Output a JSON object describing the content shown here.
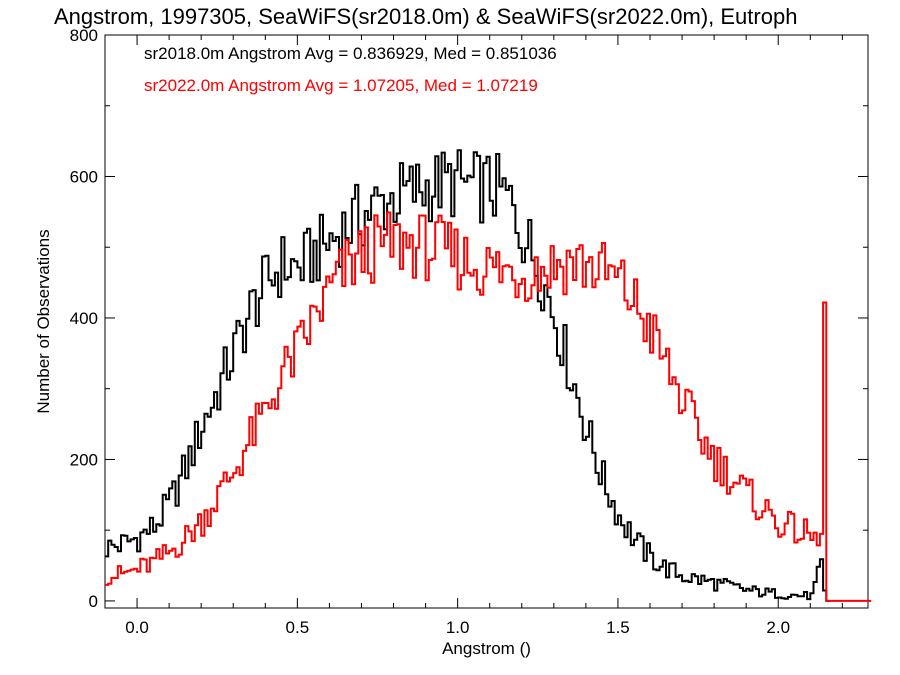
{
  "chart_data": {
    "type": "line",
    "title": "Angstrom, 1997305, SeaWiFS(sr2018.0m) & SeaWiFS(sr2022.0m), Eutroph",
    "xlabel": "Angstrom ()",
    "ylabel": "Number of Observations",
    "xlim": [
      -0.1,
      2.28
    ],
    "ylim": [
      -10,
      800
    ],
    "xticks": [
      0.0,
      0.5,
      1.0,
      1.5,
      2.0
    ],
    "xtick_labels": [
      "0.0",
      "0.5",
      "1.0",
      "1.5",
      "2.0"
    ],
    "yticks": [
      0,
      200,
      400,
      600,
      800
    ],
    "ytick_labels": [
      "0",
      "200",
      "400",
      "600",
      "800"
    ],
    "annotations": [
      {
        "text": "sr2018.0m Angstrom Avg = 0.836929, Med = 0.851036",
        "color": "#000000"
      },
      {
        "text": "sr2022.0m Angstrom Avg = 1.07205, Med = 1.07219",
        "color": "#ff0000"
      }
    ],
    "series": [
      {
        "color": "#000000",
        "x": [
          -0.1,
          -0.05,
          0.0,
          0.05,
          0.1,
          0.15,
          0.2,
          0.25,
          0.3,
          0.35,
          0.4,
          0.45,
          0.5,
          0.55,
          0.6,
          0.65,
          0.7,
          0.75,
          0.8,
          0.85,
          0.9,
          0.95,
          1.0,
          1.05,
          1.1,
          1.15,
          1.2,
          1.25,
          1.3,
          1.35,
          1.4,
          1.45,
          1.5,
          1.55,
          1.6,
          1.65,
          1.7,
          1.75,
          1.8,
          1.85,
          1.9,
          1.95,
          2.0,
          2.05,
          2.1,
          2.13,
          2.14,
          2.15
        ],
        "y": [
          75,
          80,
          90,
          105,
          140,
          190,
          250,
          300,
          355,
          410,
          450,
          475,
          470,
          490,
          510,
          530,
          545,
          560,
          570,
          578,
          585,
          590,
          590,
          585,
          585,
          570,
          520,
          470,
          400,
          320,
          240,
          170,
          120,
          85,
          60,
          45,
          35,
          30,
          25,
          20,
          15,
          12,
          10,
          8,
          7,
          50,
          10,
          0
        ]
      },
      {
        "color": "#ff0000",
        "x": [
          -0.1,
          -0.05,
          0.0,
          0.05,
          0.1,
          0.15,
          0.2,
          0.25,
          0.3,
          0.35,
          0.4,
          0.45,
          0.5,
          0.55,
          0.6,
          0.65,
          0.7,
          0.75,
          0.8,
          0.85,
          0.9,
          0.95,
          1.0,
          1.05,
          1.1,
          1.15,
          1.2,
          1.25,
          1.3,
          1.35,
          1.4,
          1.45,
          1.5,
          1.55,
          1.6,
          1.65,
          1.7,
          1.75,
          1.8,
          1.85,
          1.9,
          1.95,
          2.0,
          2.05,
          2.1,
          2.13,
          2.14,
          2.15,
          2.2,
          2.28
        ],
        "y": [
          35,
          38,
          45,
          55,
          70,
          90,
          115,
          150,
          185,
          230,
          270,
          320,
          355,
          400,
          440,
          470,
          490,
          500,
          505,
          505,
          500,
          495,
          485,
          475,
          470,
          465,
          465,
          470,
          475,
          480,
          475,
          465,
          450,
          420,
          380,
          330,
          280,
          235,
          200,
          175,
          150,
          130,
          110,
          100,
          90,
          80,
          460,
          0,
          0,
          0
        ]
      }
    ]
  }
}
